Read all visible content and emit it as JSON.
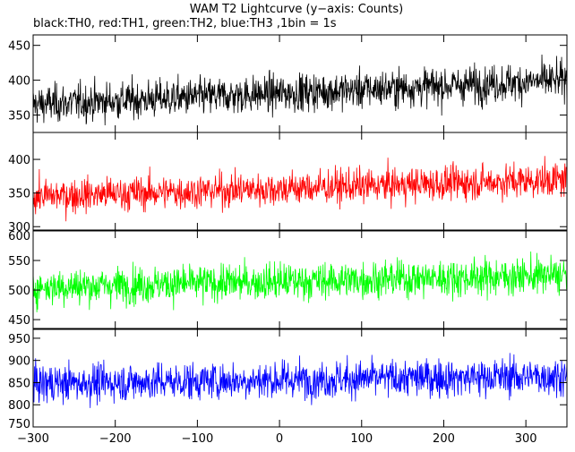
{
  "title": "WAM T2 Lightcurve (y−axis: Counts)",
  "subtitle": "black:TH0, red:TH1, green:TH2, blue:TH3 ,1bin = 1s",
  "chart_data": {
    "type": "line",
    "title": "WAM T2 Lightcurve (y−axis: Counts)",
    "subtitle": "black:TH0, red:TH1, green:TH2, blue:TH3 ,1bin = 1s",
    "xlim": [
      -300,
      350
    ],
    "xticks": [
      -300,
      -200,
      -100,
      0,
      100,
      200,
      300
    ],
    "xtick_labels": [
      "−300",
      "−200",
      "−100",
      "0",
      "100",
      "200",
      "300"
    ],
    "grid": false,
    "panels": [
      {
        "name": "TH0",
        "color": "#000000",
        "ylim": [
          325,
          465
        ],
        "yticks": [
          350,
          400,
          450
        ],
        "ytick_labels": [
          "350",
          "400",
          "450"
        ],
        "mean_start": 365,
        "mean_end": 400,
        "noise_sigma": 19
      },
      {
        "name": "TH1",
        "color": "#ff0000",
        "ylim": [
          295,
          440
        ],
        "yticks": [
          300,
          350,
          400
        ],
        "ytick_labels": [
          "300",
          "350",
          "400"
        ],
        "mean_start": 345,
        "mean_end": 370,
        "noise_sigma": 18
      },
      {
        "name": "TH2",
        "color": "#00ff00",
        "ylim": [
          435,
          600
        ],
        "yticks": [
          450,
          500,
          550,
          600
        ],
        "ytick_labels": [
          "450",
          "500",
          "550",
          "600"
        ],
        "mean_start": 505,
        "mean_end": 525,
        "noise_sigma": 22
      },
      {
        "name": "TH3",
        "color": "#0000ff",
        "ylim": [
          750,
          970
        ],
        "yticks": [
          750,
          800,
          850,
          900,
          950
        ],
        "ytick_labels": [
          "750",
          "800",
          "850",
          "900",
          "950"
        ],
        "mean_start": 848,
        "mean_end": 865,
        "noise_sigma": 30
      }
    ]
  }
}
